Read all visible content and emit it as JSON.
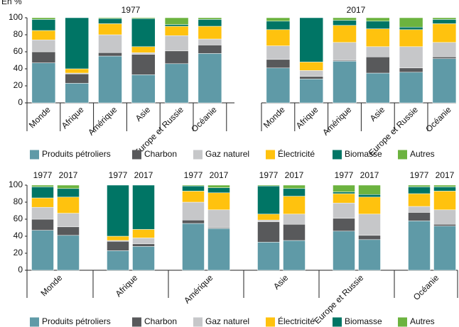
{
  "chart_data": [
    {
      "type": "stacked-bar",
      "y_label": "En %",
      "panels": [
        "1977",
        "2017"
      ],
      "categories": [
        "Monde",
        "Afrique",
        "Amérique",
        "Asie",
        "Europe et Russie",
        "Océanie",
        "Monde",
        "Afrique",
        "Amérique",
        "Asie",
        "Europe et Russie",
        "Océanie"
      ],
      "ylim": [
        0,
        100
      ],
      "yticks": [
        0,
        20,
        40,
        60,
        80,
        100
      ],
      "series": [
        {
          "name": "Produits pétroliers",
          "color": "#5f9aa7",
          "values": [
            47,
            23,
            55,
            33,
            46,
            58,
            41,
            28,
            49,
            35,
            36,
            52
          ]
        },
        {
          "name": "Charbon",
          "color": "#58595b",
          "values": [
            13,
            11,
            4,
            24,
            15,
            10,
            10,
            3,
            1,
            19,
            5,
            2
          ]
        },
        {
          "name": "Gaz naturel",
          "color": "#c6c7c9",
          "values": [
            14,
            1,
            21,
            2,
            18,
            7,
            16,
            7,
            21,
            12,
            25,
            17
          ]
        },
        {
          "name": "Électricité",
          "color": "#ffc20e",
          "values": [
            11,
            5,
            13,
            7,
            11,
            15,
            19,
            10,
            20,
            21,
            20,
            22
          ]
        },
        {
          "name": "Biomasse",
          "color": "#007565",
          "values": [
            13,
            60,
            6,
            33,
            2,
            8,
            10,
            52,
            6,
            9,
            3,
            5
          ]
        },
        {
          "name": "Autres",
          "color": "#6cb33f",
          "values": [
            2,
            0,
            1,
            1,
            8,
            2,
            4,
            0,
            3,
            4,
            11,
            2
          ]
        }
      ]
    },
    {
      "type": "grouped-stacked-bar",
      "years": [
        "1977",
        "2017"
      ],
      "categories": [
        "Monde",
        "Afrique",
        "Amérique",
        "Asie",
        "Europe et Russie",
        "Océanie"
      ],
      "ylim": [
        0,
        100
      ],
      "yticks": [
        0,
        20,
        40,
        60,
        80,
        100
      ],
      "series": [
        {
          "name": "Produits pétroliers",
          "color": "#5f9aa7",
          "values": [
            [
              47,
              41
            ],
            [
              23,
              28
            ],
            [
              55,
              49
            ],
            [
              33,
              35
            ],
            [
              46,
              36
            ],
            [
              58,
              52
            ]
          ]
        },
        {
          "name": "Charbon",
          "color": "#58595b",
          "values": [
            [
              13,
              10
            ],
            [
              11,
              3
            ],
            [
              4,
              1
            ],
            [
              24,
              19
            ],
            [
              15,
              5
            ],
            [
              10,
              2
            ]
          ]
        },
        {
          "name": "Gaz naturel",
          "color": "#c6c7c9",
          "values": [
            [
              14,
              16
            ],
            [
              1,
              7
            ],
            [
              21,
              21
            ],
            [
              2,
              12
            ],
            [
              18,
              25
            ],
            [
              7,
              17
            ]
          ]
        },
        {
          "name": "Électricité",
          "color": "#ffc20e",
          "values": [
            [
              11,
              19
            ],
            [
              5,
              10
            ],
            [
              13,
              20
            ],
            [
              7,
              21
            ],
            [
              11,
              20
            ],
            [
              15,
              22
            ]
          ]
        },
        {
          "name": "Biomasse",
          "color": "#007565",
          "values": [
            [
              13,
              10
            ],
            [
              60,
              52
            ],
            [
              6,
              6
            ],
            [
              33,
              9
            ],
            [
              2,
              3
            ],
            [
              8,
              5
            ]
          ]
        },
        {
          "name": "Autres",
          "color": "#6cb33f",
          "values": [
            [
              2,
              4
            ],
            [
              0,
              0
            ],
            [
              1,
              3
            ],
            [
              1,
              4
            ],
            [
              8,
              11
            ],
            [
              2,
              2
            ]
          ]
        }
      ]
    }
  ]
}
